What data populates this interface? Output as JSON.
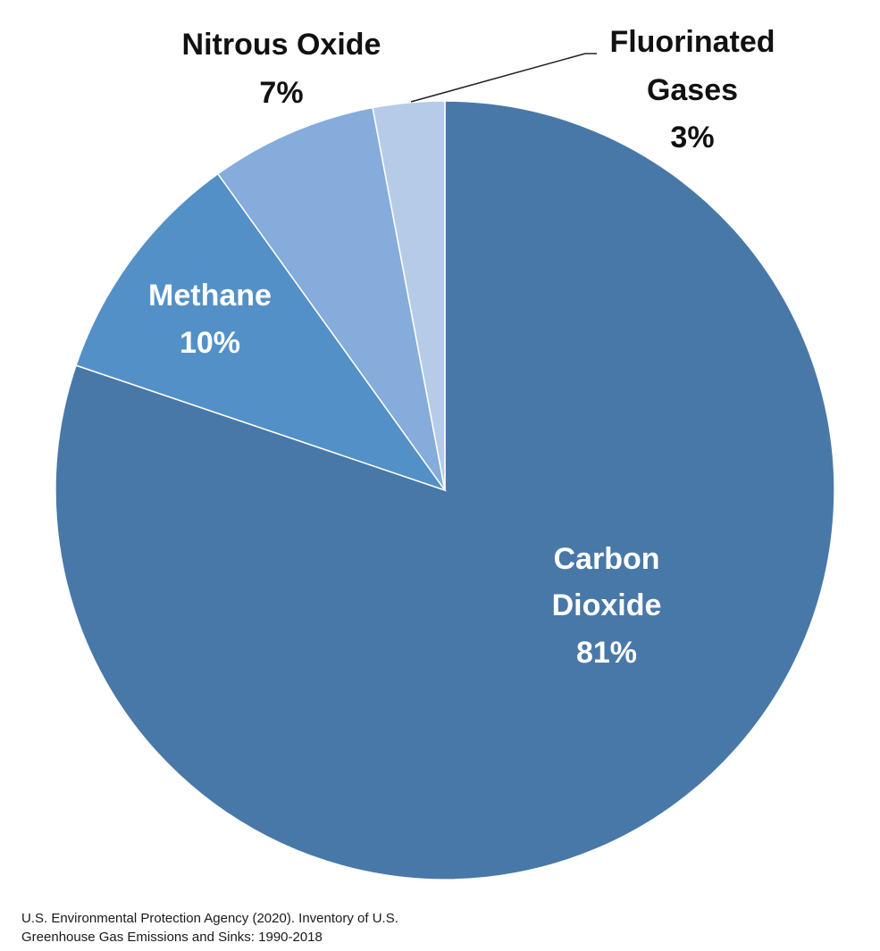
{
  "chart_data": {
    "type": "pie",
    "start": "12 o'clock",
    "direction": "clockwise",
    "slices": [
      {
        "name": "Carbon Dioxide",
        "label_lines": [
          "Carbon",
          "Dioxide"
        ],
        "value": 81,
        "percent_label": "81%",
        "color": "#4878a8",
        "label_color": "#ffffff",
        "label_placement": "inside"
      },
      {
        "name": "Methane",
        "label_lines": [
          "Methane"
        ],
        "value": 10,
        "percent_label": "10%",
        "color": "#5390c7",
        "label_color": "#ffffff",
        "label_placement": "inside"
      },
      {
        "name": "Nitrous Oxide",
        "label_lines": [
          "Nitrous Oxide"
        ],
        "value": 7,
        "percent_label": "7%",
        "color": "#85acda",
        "label_color": "#111111",
        "label_placement": "outside"
      },
      {
        "name": "Fluorinated Gases",
        "label_lines": [
          "Fluorinated",
          "Gases"
        ],
        "value": 3,
        "percent_label": "3%",
        "color": "#b6cbe8",
        "label_color": "#111111",
        "label_placement": "outside with leader line"
      }
    ]
  },
  "source": {
    "line1": "U.S. Environmental Protection Agency (2020). Inventory of U.S.",
    "line2": "Greenhouse Gas Emissions and Sinks: 1990-2018"
  }
}
